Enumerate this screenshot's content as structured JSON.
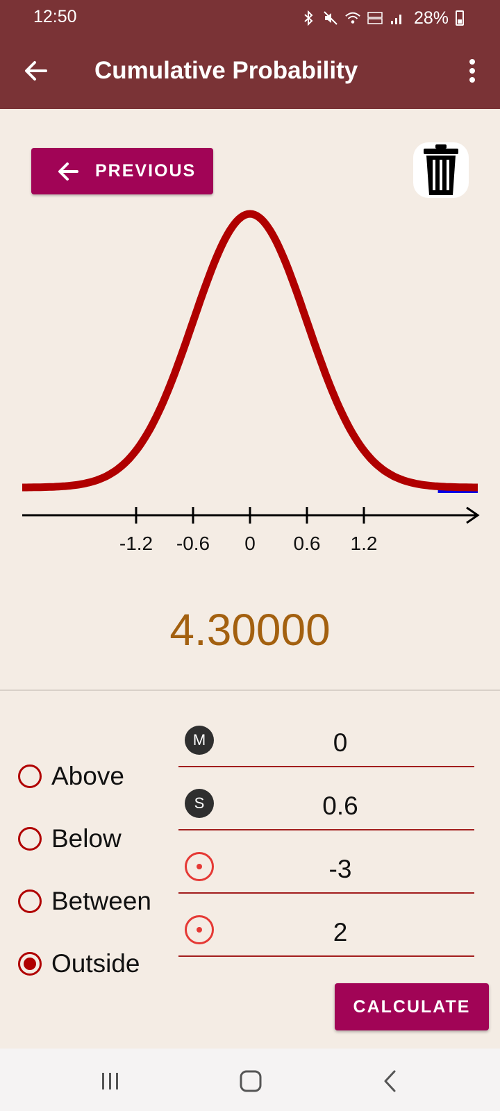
{
  "status": {
    "time": "12:50",
    "battery": "28%"
  },
  "appbar": {
    "title": "Cumulative Probability"
  },
  "buttons": {
    "previous": "PREVIOUS",
    "calculate": "CALCULATE"
  },
  "chart_data": {
    "type": "line",
    "title": "",
    "xlabel": "",
    "ylabel": "",
    "tick_labels": [
      "-1.2",
      "-0.6",
      "0",
      "0.6",
      "1.2"
    ],
    "ticks": [
      -1.2,
      -0.6,
      0,
      0.6,
      1.2
    ],
    "mean": 0,
    "sd": 0.6,
    "xlim": [
      -2.4,
      2.4
    ],
    "shaded_region": "outside",
    "colors": {
      "curve": "#b00000",
      "shade": "#0000e6",
      "axis": "#000000"
    }
  },
  "result": {
    "value": "4.30000"
  },
  "options": [
    {
      "label": "Above",
      "selected": false
    },
    {
      "label": "Below",
      "selected": false
    },
    {
      "label": "Between",
      "selected": false
    },
    {
      "label": "Outside",
      "selected": true
    }
  ],
  "fields": [
    {
      "badge": "M",
      "value": "0"
    },
    {
      "badge": "S",
      "value": "0.6"
    },
    {
      "badge": "",
      "value": "-3"
    },
    {
      "badge": "",
      "value": "2"
    }
  ],
  "icons": {
    "back": "arrow-left-icon",
    "more": "more-vert-icon",
    "trash": "trash-icon",
    "target": "target-icon"
  }
}
